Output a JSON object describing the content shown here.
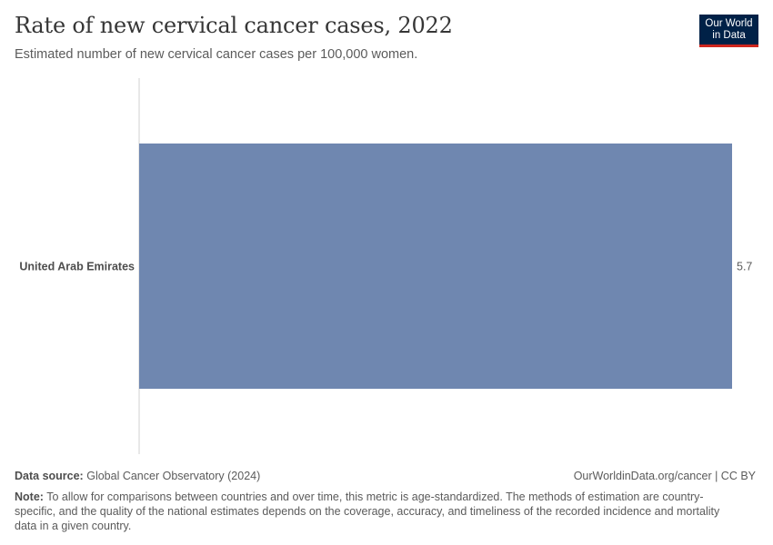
{
  "header": {
    "title": "Rate of new cervical cancer cases, 2022",
    "subtitle": "Estimated number of new cervical cancer cases per 100,000 women."
  },
  "logo": {
    "line1": "Our World",
    "line2": "in Data"
  },
  "chart_data": {
    "type": "bar",
    "orientation": "horizontal",
    "categories": [
      "United Arab Emirates"
    ],
    "values": [
      5.7
    ],
    "value_labels": [
      "5.7"
    ],
    "title": "Rate of new cervical cancer cases, 2022",
    "xlabel": "",
    "ylabel": "",
    "xlim": [
      0,
      5.7
    ],
    "grid": false,
    "bar_color": "#6f87b0"
  },
  "footer": {
    "source_label": "Data source:",
    "source_text": "Global Cancer Observatory (2024)",
    "license": "OurWorldinData.org/cancer | CC BY",
    "note_label": "Note:",
    "note_text": "To allow for comparisons between countries and over time, this metric is age-standardized. The methods of estimation are country-specific, and the quality of the national estimates depends on the coverage, accuracy, and timeliness of the recorded incidence and mortality data in a given country."
  }
}
